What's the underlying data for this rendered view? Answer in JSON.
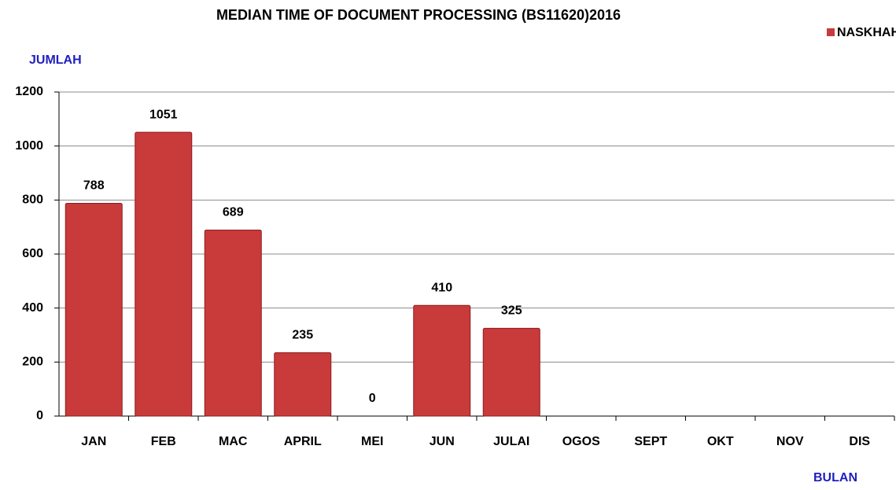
{
  "chart_data": {
    "type": "bar",
    "title": "MEDIAN TIME OF DOCUMENT PROCESSING (BS11620)2016",
    "y_label": "JUMLAH",
    "x_label": "BULAN",
    "categories": [
      "JAN",
      "FEB",
      "MAC",
      "APRIL",
      "MEI",
      "JUN",
      "JULAI",
      "OGOS",
      "SEPT",
      "OKT",
      "NOV",
      "DIS"
    ],
    "series": [
      {
        "name": "NASKHAH",
        "color": "#c93a3b",
        "values": [
          788,
          1051,
          689,
          235,
          0,
          410,
          325,
          null,
          null,
          null,
          null,
          null
        ]
      }
    ],
    "ylim": [
      0,
      1200
    ],
    "yticks": [
      0,
      200,
      400,
      600,
      800,
      1000,
      1200
    ],
    "grid": true,
    "legend": "top-right"
  }
}
